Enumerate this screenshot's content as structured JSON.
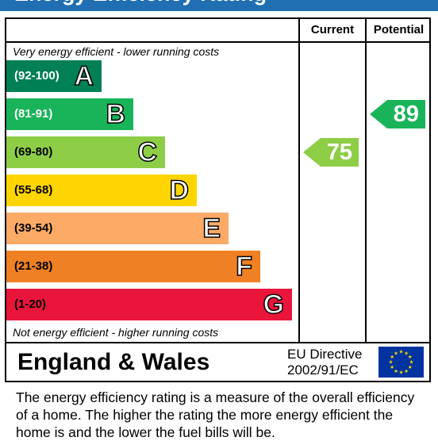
{
  "title": "Energy Efficiency Rating",
  "columns": {
    "current": "Current",
    "potential": "Potential"
  },
  "top_note": "Very energy efficient - lower running costs",
  "bottom_note": "Not energy efficient - higher running costs",
  "footer": {
    "region": "England & Wales",
    "directive_line1": "EU Directive",
    "directive_line2": "2002/91/EC"
  },
  "description": "The energy efficiency rating is a measure of the overall efficiency of a home.  The higher the rating the more energy efficient the home is and the lower the fuel bills will be.",
  "chart_data": {
    "type": "bar",
    "bands": [
      {
        "range": "(92-100)",
        "letter": "A",
        "color": "#008054",
        "range_text_color": "#ffffff"
      },
      {
        "range": "(81-91)",
        "letter": "B",
        "color": "#19b459",
        "range_text_color": "#ffffff"
      },
      {
        "range": "(69-80)",
        "letter": "C",
        "color": "#8dce46",
        "range_text_color": "#000000"
      },
      {
        "range": "(55-68)",
        "letter": "D",
        "color": "#ffd500",
        "range_text_color": "#000000"
      },
      {
        "range": "(39-54)",
        "letter": "E",
        "color": "#fcaa65",
        "range_text_color": "#000000"
      },
      {
        "range": "(21-38)",
        "letter": "F",
        "color": "#ef8023",
        "range_text_color": "#000000"
      },
      {
        "range": "(1-20)",
        "letter": "G",
        "color": "#e9153b",
        "range_text_color": "#000000"
      }
    ],
    "current": {
      "value": 75,
      "band": "C",
      "color": "#8dce46"
    },
    "potential": {
      "value": 89,
      "band": "B",
      "color": "#19b459"
    }
  }
}
